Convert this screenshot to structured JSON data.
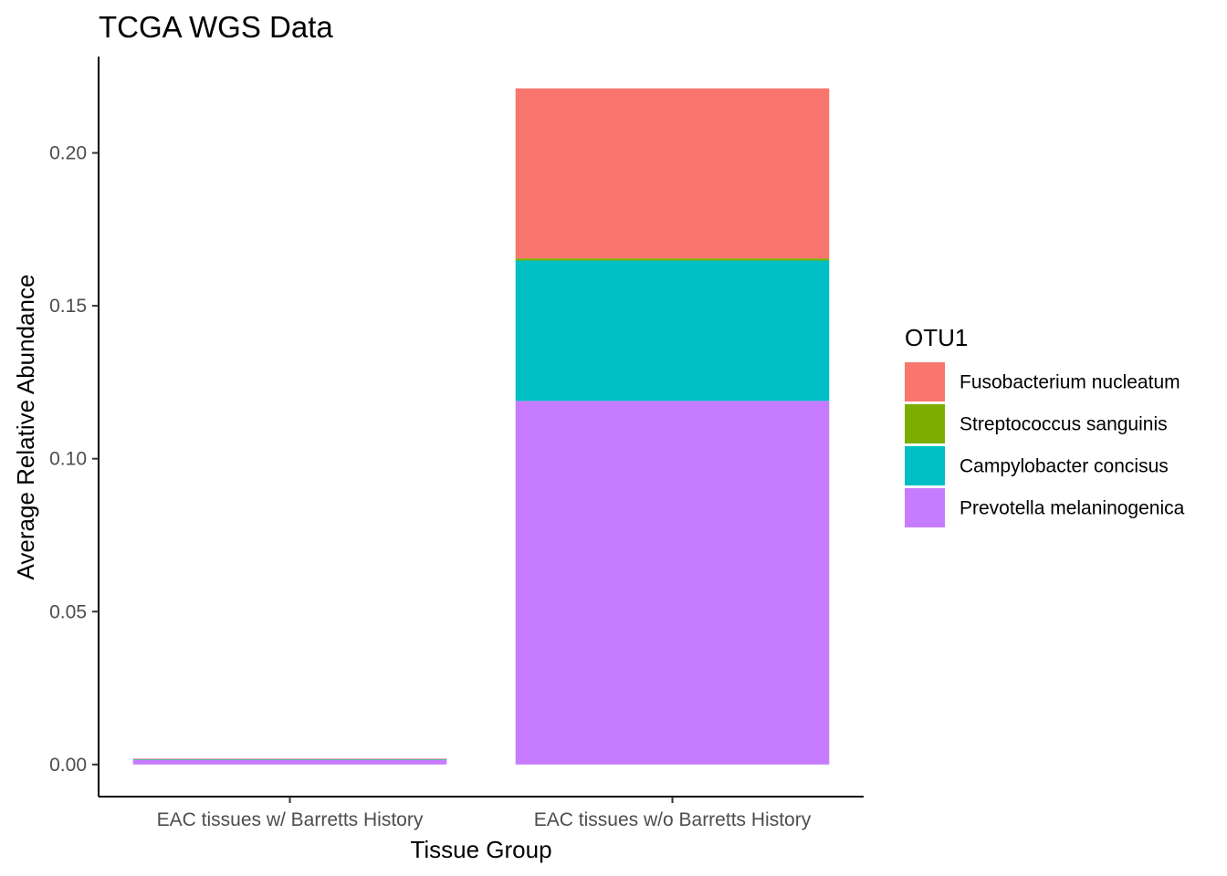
{
  "chart_data": {
    "type": "bar",
    "stacked": true,
    "title": "TCGA WGS Data",
    "xlabel": "Tissue Group",
    "ylabel": "Average Relative Abundance",
    "ylim": [
      -0.0105,
      0.2315
    ],
    "yticks": [
      "0.00",
      "0.05",
      "0.10",
      "0.15",
      "0.20"
    ],
    "categories": [
      "EAC tissues w/ Barretts History",
      "EAC tissues w/o Barretts History"
    ],
    "legend_title": "OTU1",
    "legend_position": "right",
    "grid": false,
    "series": [
      {
        "name": "Prevotella melaninogenica",
        "color": "#C77CFF",
        "values": [
          0.0015,
          0.1189
        ]
      },
      {
        "name": "Campylobacter concisus",
        "color": "#00BFC4",
        "values": [
          0.0002,
          0.0459
        ]
      },
      {
        "name": "Streptococcus sanguinis",
        "color": "#7CAE00",
        "values": [
          0.0,
          0.0007
        ]
      },
      {
        "name": "Fusobacterium nucleatum",
        "color": "#F8766D",
        "values": [
          0.0002,
          0.0556
        ]
      }
    ],
    "legend_order": [
      "Fusobacterium nucleatum",
      "Streptococcus sanguinis",
      "Campylobacter concisus",
      "Prevotella melaninogenica"
    ]
  }
}
